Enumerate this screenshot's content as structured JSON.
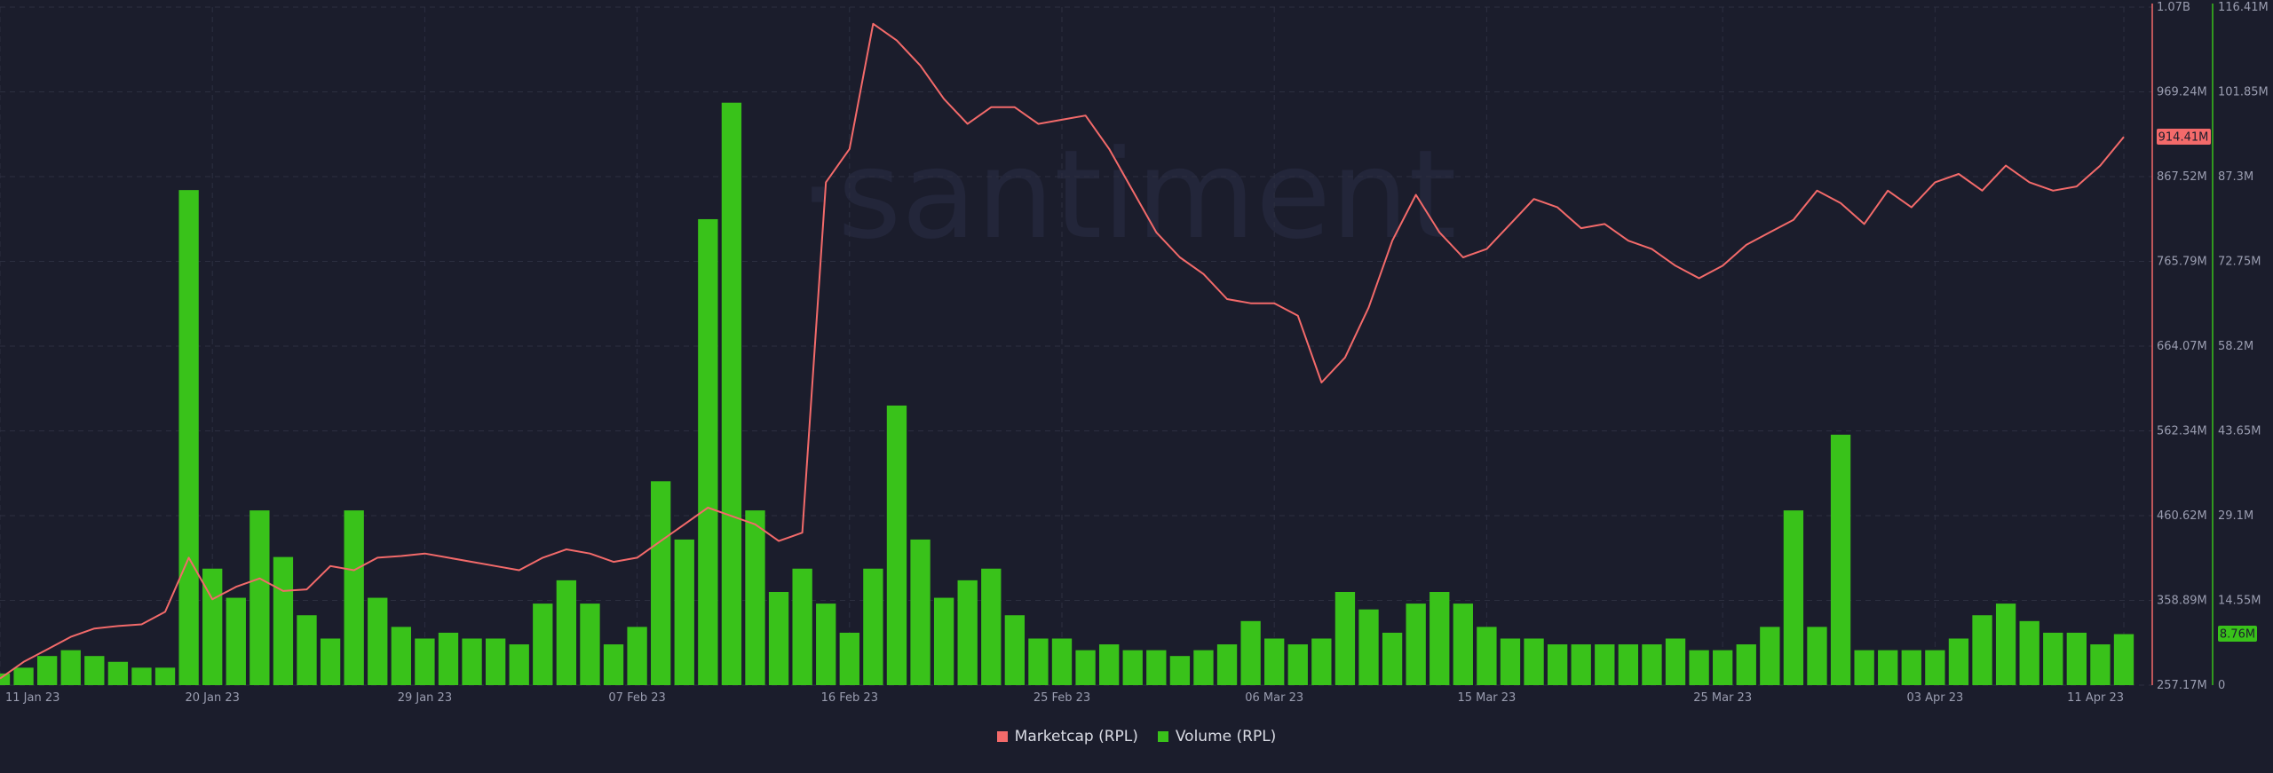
{
  "watermark": "·santiment",
  "colors": {
    "background": "#1b1d2c",
    "grid": "#2c2f40",
    "axis_text": "#9a9db0",
    "marketcap": "#f36a6a",
    "volume": "#39c21a",
    "volume_axis": "#39c21a"
  },
  "legend": [
    {
      "label": "Marketcap (RPL)",
      "color": "#f36a6a"
    },
    {
      "label": "Volume (RPL)",
      "color": "#39c21a"
    }
  ],
  "badges": {
    "marketcap_current": "914.41M",
    "volume_current": "8.76M"
  },
  "chart_data": {
    "type": "line",
    "title": "",
    "legend_position": "bottom-center",
    "grid": true,
    "x_axis": {
      "start": "2023-01-11",
      "end": "2023-04-11",
      "tick_labels": [
        "11 Jan 23",
        "20 Jan 23",
        "29 Jan 23",
        "07 Feb 23",
        "16 Feb 23",
        "25 Feb 23",
        "06 Mar 23",
        "15 Mar 23",
        "25 Mar 23",
        "03 Apr 23",
        "11 Apr 23"
      ],
      "tick_dates": [
        "2023-01-11",
        "2023-01-20",
        "2023-01-29",
        "2023-02-07",
        "2023-02-16",
        "2023-02-25",
        "2023-03-06",
        "2023-03-15",
        "2023-03-25",
        "2023-04-03",
        "2023-04-11"
      ]
    },
    "y_left": {
      "ylim": [
        257.17,
        1070
      ],
      "unit": "M",
      "tick_labels": [
        "1.07B",
        "969.24M",
        "867.52M",
        "765.79M",
        "664.07M",
        "562.34M",
        "460.62M",
        "358.89M",
        "257.17M"
      ]
    },
    "y_right": {
      "ylim": [
        0,
        116.41
      ],
      "unit": "M",
      "tick_labels": [
        "116.41M",
        "101.85M",
        "87.3M",
        "72.75M",
        "58.2M",
        "43.65M",
        "29.1M",
        "14.55M",
        "0"
      ]
    },
    "series": [
      {
        "name": "Marketcap (RPL)",
        "type": "line",
        "axis": "left",
        "x": [
          "2023-01-11",
          "2023-01-12",
          "2023-01-13",
          "2023-01-14",
          "2023-01-15",
          "2023-01-16",
          "2023-01-17",
          "2023-01-18",
          "2023-01-19",
          "2023-01-20",
          "2023-01-21",
          "2023-01-22",
          "2023-01-23",
          "2023-01-24",
          "2023-01-25",
          "2023-01-26",
          "2023-01-27",
          "2023-01-28",
          "2023-01-29",
          "2023-01-30",
          "2023-01-31",
          "2023-02-01",
          "2023-02-02",
          "2023-02-03",
          "2023-02-04",
          "2023-02-05",
          "2023-02-06",
          "2023-02-07",
          "2023-02-08",
          "2023-02-09",
          "2023-02-10",
          "2023-02-11",
          "2023-02-12",
          "2023-02-13",
          "2023-02-14",
          "2023-02-15",
          "2023-02-16",
          "2023-02-17",
          "2023-02-18",
          "2023-02-19",
          "2023-02-20",
          "2023-02-21",
          "2023-02-22",
          "2023-02-23",
          "2023-02-24",
          "2023-02-25",
          "2023-02-26",
          "2023-02-27",
          "2023-02-28",
          "2023-03-01",
          "2023-03-02",
          "2023-03-03",
          "2023-03-04",
          "2023-03-05",
          "2023-03-06",
          "2023-03-07",
          "2023-03-08",
          "2023-03-09",
          "2023-03-10",
          "2023-03-11",
          "2023-03-12",
          "2023-03-13",
          "2023-03-14",
          "2023-03-15",
          "2023-03-16",
          "2023-03-17",
          "2023-03-18",
          "2023-03-19",
          "2023-03-20",
          "2023-03-21",
          "2023-03-22",
          "2023-03-23",
          "2023-03-24",
          "2023-03-25",
          "2023-03-26",
          "2023-03-27",
          "2023-03-28",
          "2023-03-29",
          "2023-03-30",
          "2023-03-31",
          "2023-04-01",
          "2023-04-02",
          "2023-04-03",
          "2023-04-04",
          "2023-04-05",
          "2023-04-06",
          "2023-04-07",
          "2023-04-08",
          "2023-04-09",
          "2023-04-10",
          "2023-04-11"
        ],
        "values": [
          265,
          285,
          300,
          315,
          325,
          328,
          330,
          345,
          410,
          360,
          375,
          385,
          370,
          372,
          400,
          395,
          410,
          412,
          415,
          410,
          405,
          400,
          395,
          410,
          420,
          415,
          405,
          410,
          430,
          450,
          470,
          460,
          450,
          430,
          440,
          860,
          900,
          1050,
          1030,
          1000,
          960,
          930,
          950,
          950,
          930,
          935,
          940,
          900,
          850,
          800,
          770,
          750,
          720,
          715,
          715,
          700,
          620,
          650,
          710,
          790,
          845,
          800,
          770,
          780,
          810,
          840,
          830,
          805,
          810,
          790,
          780,
          760,
          745,
          760,
          785,
          800,
          815,
          850,
          835,
          810,
          850,
          830,
          860,
          870,
          850,
          880,
          860,
          850,
          855,
          880,
          914.41
        ]
      },
      {
        "name": "Volume (RPL)",
        "type": "bar",
        "axis": "right",
        "x": [
          "2023-01-11",
          "2023-01-12",
          "2023-01-13",
          "2023-01-14",
          "2023-01-15",
          "2023-01-16",
          "2023-01-17",
          "2023-01-18",
          "2023-01-19",
          "2023-01-20",
          "2023-01-21",
          "2023-01-22",
          "2023-01-23",
          "2023-01-24",
          "2023-01-25",
          "2023-01-26",
          "2023-01-27",
          "2023-01-28",
          "2023-01-29",
          "2023-01-30",
          "2023-01-31",
          "2023-02-01",
          "2023-02-02",
          "2023-02-03",
          "2023-02-04",
          "2023-02-05",
          "2023-02-06",
          "2023-02-07",
          "2023-02-08",
          "2023-02-09",
          "2023-02-10",
          "2023-02-11",
          "2023-02-12",
          "2023-02-13",
          "2023-02-14",
          "2023-02-15",
          "2023-02-16",
          "2023-02-17",
          "2023-02-18",
          "2023-02-19",
          "2023-02-20",
          "2023-02-21",
          "2023-02-22",
          "2023-02-23",
          "2023-02-24",
          "2023-02-25",
          "2023-02-26",
          "2023-02-27",
          "2023-02-28",
          "2023-03-01",
          "2023-03-02",
          "2023-03-03",
          "2023-03-04",
          "2023-03-05",
          "2023-03-06",
          "2023-03-07",
          "2023-03-08",
          "2023-03-09",
          "2023-03-10",
          "2023-03-11",
          "2023-03-12",
          "2023-03-13",
          "2023-03-14",
          "2023-03-15",
          "2023-03-16",
          "2023-03-17",
          "2023-03-18",
          "2023-03-19",
          "2023-03-20",
          "2023-03-21",
          "2023-03-22",
          "2023-03-23",
          "2023-03-24",
          "2023-03-25",
          "2023-03-26",
          "2023-03-27",
          "2023-03-28",
          "2023-03-29",
          "2023-03-30",
          "2023-03-31",
          "2023-04-01",
          "2023-04-02",
          "2023-04-03",
          "2023-04-04",
          "2023-04-05",
          "2023-04-06",
          "2023-04-07",
          "2023-04-08",
          "2023-04-09",
          "2023-04-10",
          "2023-04-11"
        ],
        "values": [
          2,
          3,
          5,
          6,
          5,
          4,
          3,
          3,
          85,
          20,
          15,
          30,
          22,
          12,
          8,
          30,
          15,
          10,
          8,
          9,
          8,
          8,
          7,
          14,
          18,
          14,
          7,
          10,
          35,
          25,
          80,
          100,
          30,
          16,
          20,
          14,
          9,
          20,
          48,
          25,
          15,
          18,
          20,
          12,
          8,
          8,
          6,
          7,
          6,
          6,
          5,
          6,
          7,
          11,
          8,
          7,
          8,
          16,
          13,
          9,
          14,
          16,
          14,
          10,
          8,
          8,
          7,
          7,
          7,
          7,
          7,
          8,
          6,
          6,
          7,
          10,
          30,
          10,
          43,
          6,
          6,
          6,
          6,
          8,
          12,
          14,
          11,
          9,
          9,
          7,
          8.76
        ]
      }
    ]
  }
}
